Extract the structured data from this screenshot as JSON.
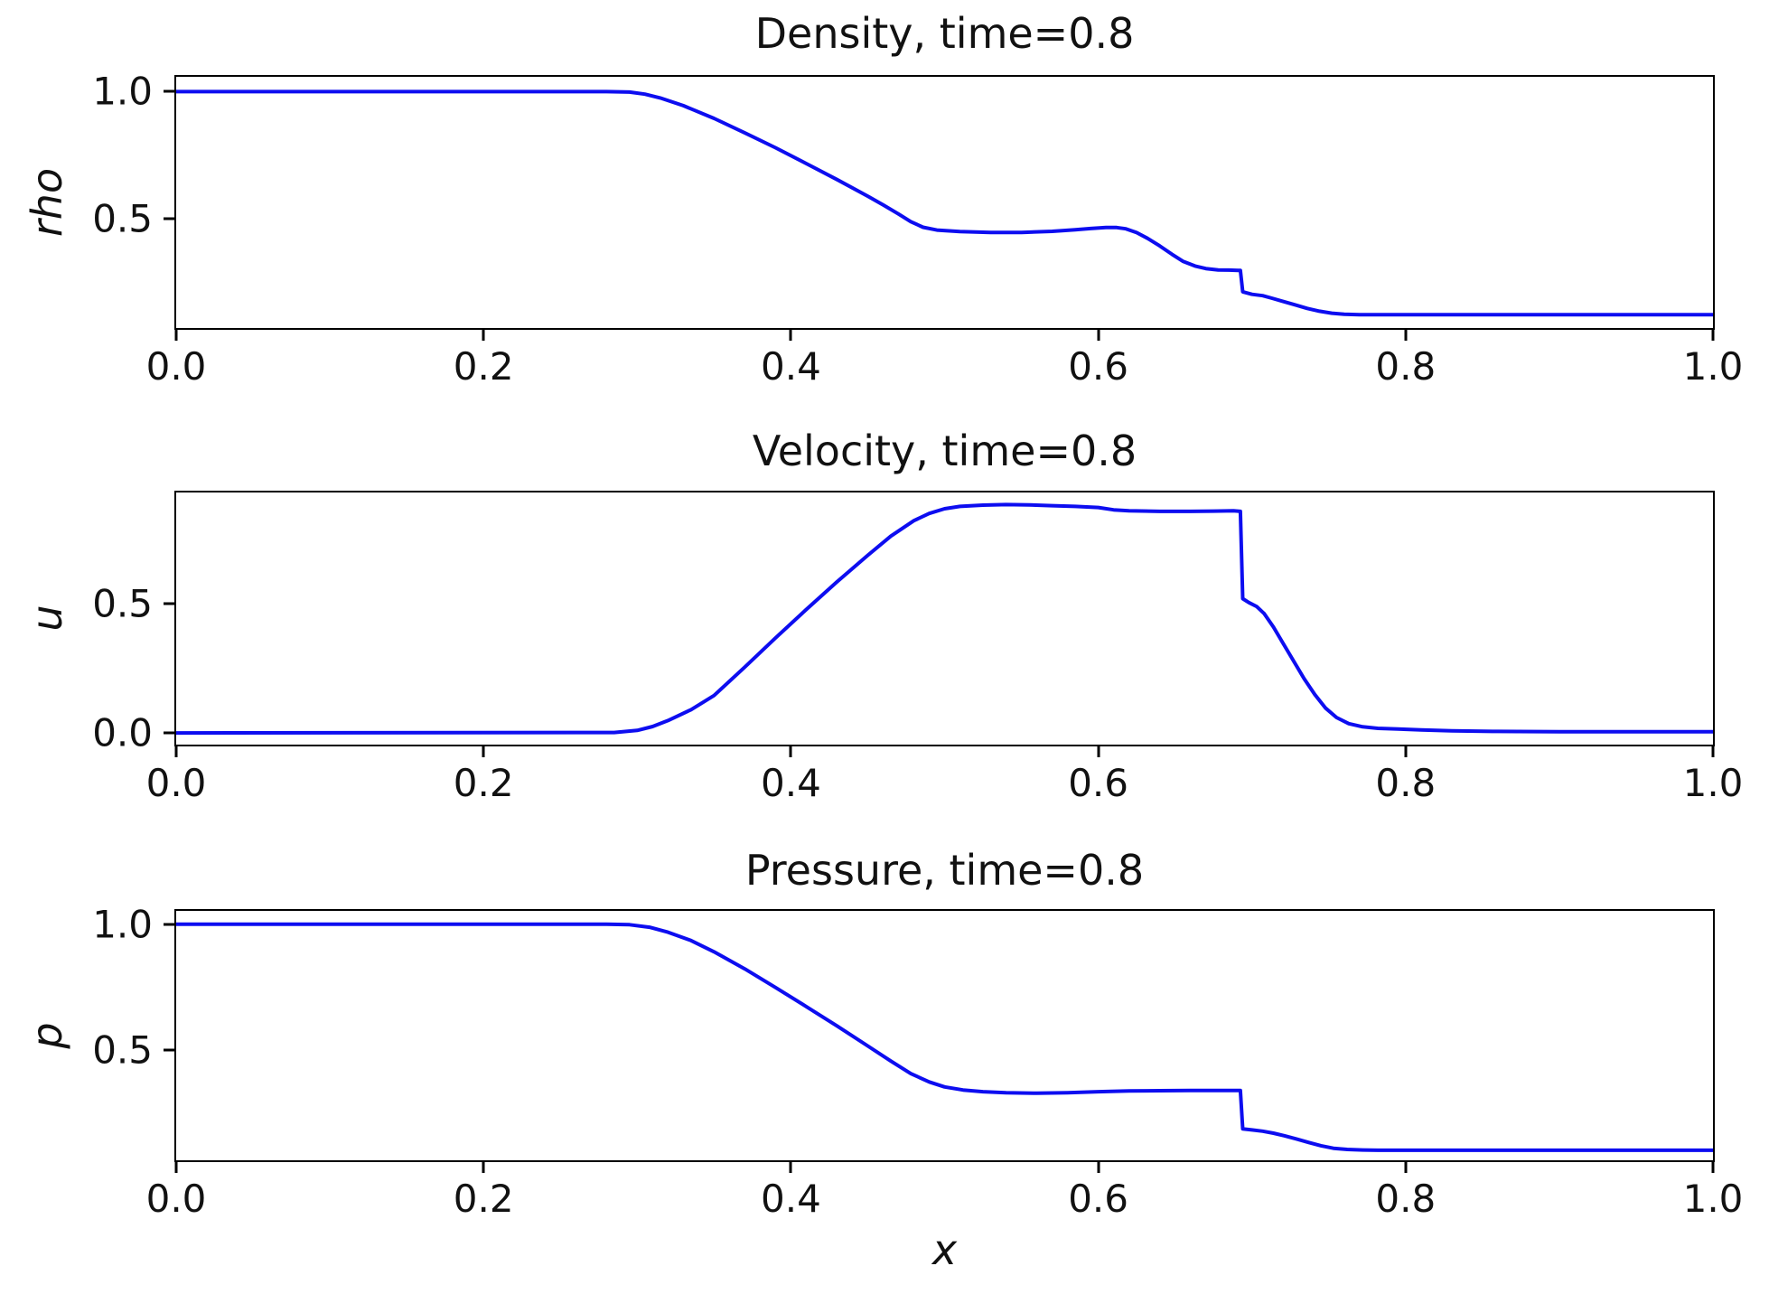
{
  "style": {
    "line_color": "#0d0df0",
    "axis_color": "#000000",
    "text_color": "#111111",
    "background": "#ffffff"
  },
  "chart_data": [
    {
      "type": "line",
      "title": "Density, time=0.8",
      "ylabel": "rho",
      "xlabel": "",
      "xlim": [
        0,
        1
      ],
      "ylim": [
        0.073,
        1.058
      ],
      "grid": false,
      "legend": null,
      "xticks": [
        {
          "value": 0.0,
          "label": "0.0"
        },
        {
          "value": 0.2,
          "label": "0.2"
        },
        {
          "value": 0.4,
          "label": "0.4"
        },
        {
          "value": 0.6,
          "label": "0.6"
        },
        {
          "value": 0.8,
          "label": "0.8"
        },
        {
          "value": 1.0,
          "label": "1.0"
        }
      ],
      "yticks": [
        {
          "value": 1.0,
          "label": "1.0"
        },
        {
          "value": 0.5,
          "label": "0.5"
        }
      ],
      "series": [
        {
          "name": "rho",
          "x": [
            0,
            0.28,
            0.295,
            0.305,
            0.315,
            0.33,
            0.35,
            0.37,
            0.39,
            0.41,
            0.43,
            0.45,
            0.46,
            0.47,
            0.478,
            0.486,
            0.495,
            0.51,
            0.53,
            0.55,
            0.57,
            0.585,
            0.595,
            0.605,
            0.612,
            0.618,
            0.625,
            0.632,
            0.64,
            0.648,
            0.655,
            0.663,
            0.67,
            0.678,
            0.685,
            0.691,
            0.6925,
            0.694,
            0.7,
            0.707,
            0.713,
            0.72,
            0.728,
            0.736,
            0.744,
            0.752,
            0.76,
            0.77,
            0.78,
            0.8,
            1.0
          ],
          "y": [
            1.0,
            1.0,
            0.998,
            0.99,
            0.975,
            0.945,
            0.895,
            0.838,
            0.78,
            0.718,
            0.655,
            0.59,
            0.556,
            0.52,
            0.49,
            0.468,
            0.457,
            0.451,
            0.448,
            0.448,
            0.452,
            0.458,
            0.463,
            0.467,
            0.467,
            0.462,
            0.447,
            0.425,
            0.395,
            0.362,
            0.335,
            0.316,
            0.306,
            0.301,
            0.3,
            0.299,
            0.299,
            0.215,
            0.205,
            0.2,
            0.19,
            0.178,
            0.164,
            0.15,
            0.139,
            0.131,
            0.127,
            0.125,
            0.125,
            0.125,
            0.125
          ]
        }
      ]
    },
    {
      "type": "line",
      "title": "Velocity, time=0.8",
      "ylabel": "u",
      "xlabel": "",
      "xlim": [
        0,
        1
      ],
      "ylim": [
        -0.045,
        0.931
      ],
      "grid": false,
      "legend": null,
      "xticks": [
        {
          "value": 0.0,
          "label": "0.0"
        },
        {
          "value": 0.2,
          "label": "0.2"
        },
        {
          "value": 0.4,
          "label": "0.4"
        },
        {
          "value": 0.6,
          "label": "0.6"
        },
        {
          "value": 0.8,
          "label": "0.8"
        },
        {
          "value": 1.0,
          "label": "1.0"
        }
      ],
      "yticks": [
        {
          "value": 0.5,
          "label": "0.5"
        },
        {
          "value": 0.0,
          "label": "0.0"
        }
      ],
      "series": [
        {
          "name": "u",
          "x": [
            0,
            0.285,
            0.3,
            0.31,
            0.32,
            0.335,
            0.35,
            0.37,
            0.39,
            0.41,
            0.43,
            0.45,
            0.465,
            0.48,
            0.49,
            0.5,
            0.51,
            0.525,
            0.54,
            0.555,
            0.57,
            0.585,
            0.6,
            0.61,
            0.62,
            0.64,
            0.66,
            0.675,
            0.688,
            0.6925,
            0.694,
            0.698,
            0.703,
            0.708,
            0.714,
            0.72,
            0.727,
            0.734,
            0.741,
            0.748,
            0.755,
            0.763,
            0.772,
            0.782,
            0.795,
            0.81,
            0.83,
            0.86,
            0.9,
            1.0
          ],
          "y": [
            0,
            0.002,
            0.01,
            0.025,
            0.048,
            0.09,
            0.145,
            0.255,
            0.368,
            0.478,
            0.585,
            0.688,
            0.762,
            0.822,
            0.85,
            0.868,
            0.877,
            0.882,
            0.884,
            0.883,
            0.88,
            0.877,
            0.873,
            0.864,
            0.86,
            0.858,
            0.858,
            0.859,
            0.86,
            0.858,
            0.52,
            0.505,
            0.49,
            0.462,
            0.41,
            0.35,
            0.28,
            0.21,
            0.148,
            0.096,
            0.06,
            0.036,
            0.024,
            0.018,
            0.015,
            0.012,
            0.008,
            0.006,
            0.005,
            0.005
          ]
        }
      ]
    },
    {
      "type": "line",
      "title": "Pressure, time=0.8",
      "ylabel": "p",
      "xlabel": "x",
      "xlim": [
        0,
        1
      ],
      "ylim": [
        0.06,
        1.053
      ],
      "grid": false,
      "legend": null,
      "xticks": [
        {
          "value": 0.0,
          "label": "0.0"
        },
        {
          "value": 0.2,
          "label": "0.2"
        },
        {
          "value": 0.4,
          "label": "0.4"
        },
        {
          "value": 0.6,
          "label": "0.6"
        },
        {
          "value": 0.8,
          "label": "0.8"
        },
        {
          "value": 1.0,
          "label": "1.0"
        }
      ],
      "yticks": [
        {
          "value": 1.0,
          "label": "1.0"
        },
        {
          "value": 0.5,
          "label": "0.5"
        }
      ],
      "series": [
        {
          "name": "p",
          "x": [
            0,
            0.28,
            0.295,
            0.308,
            0.32,
            0.335,
            0.35,
            0.37,
            0.39,
            0.41,
            0.43,
            0.45,
            0.465,
            0.478,
            0.49,
            0.5,
            0.512,
            0.525,
            0.54,
            0.56,
            0.58,
            0.6,
            0.62,
            0.64,
            0.66,
            0.675,
            0.688,
            0.6925,
            0.694,
            0.7,
            0.707,
            0.714,
            0.721,
            0.729,
            0.737,
            0.745,
            0.753,
            0.762,
            0.772,
            0.785,
            0.8,
            1.0
          ],
          "y": [
            1.0,
            1.0,
            0.998,
            0.988,
            0.968,
            0.935,
            0.89,
            0.822,
            0.748,
            0.672,
            0.595,
            0.515,
            0.455,
            0.405,
            0.372,
            0.352,
            0.34,
            0.333,
            0.329,
            0.327,
            0.329,
            0.333,
            0.336,
            0.337,
            0.338,
            0.338,
            0.338,
            0.338,
            0.185,
            0.181,
            0.176,
            0.168,
            0.158,
            0.145,
            0.131,
            0.118,
            0.108,
            0.103,
            0.101,
            0.1,
            0.1,
            0.1
          ]
        }
      ]
    }
  ]
}
